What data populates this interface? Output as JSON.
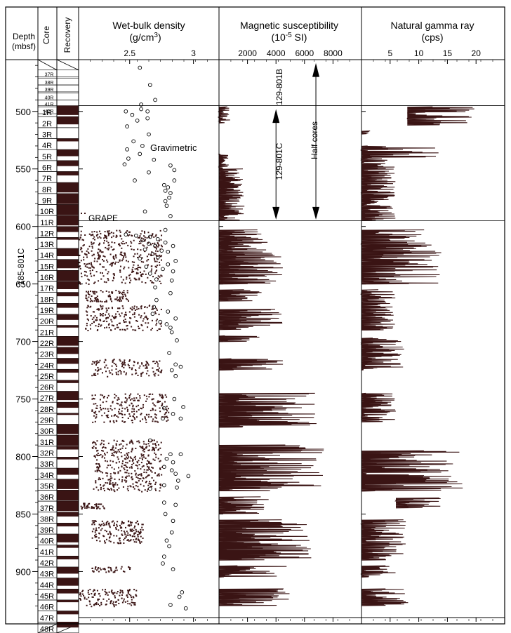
{
  "chart_data": {
    "type": "line",
    "title": "",
    "colors": {
      "data": "#3a1414",
      "frame": "#000000"
    },
    "y_axis": {
      "label_line1": "Depth",
      "label_line2": "(mbsf)",
      "range": [
        455,
        940
      ],
      "ticks": [
        500,
        550,
        600,
        650,
        700,
        750,
        800,
        850,
        900
      ]
    },
    "columns": {
      "core": "Core",
      "recovery": "Recovery",
      "site_label": "185-801C"
    },
    "cores_801B": [
      "37R",
      "38R",
      "39R",
      "40R",
      "41R",
      "42R"
    ],
    "cores_801B_depths": [
      470,
      477,
      483,
      490,
      496,
      502
    ],
    "cores_801C": [
      "1R",
      "2R",
      "3R",
      "4R",
      "5R",
      "6R",
      "7R",
      "8R",
      "9R",
      "10R",
      "11R",
      "12R",
      "13R",
      "14R",
      "15R",
      "16R",
      "17R",
      "18R",
      "19R",
      "20R",
      "21R",
      "22R",
      "23R",
      "24R",
      "25R",
      "26R",
      "27R",
      "28R",
      "29R",
      "30R",
      "31R",
      "32R",
      "33R",
      "34R",
      "35R",
      "36R",
      "37R",
      "38R",
      "39R",
      "40R",
      "41R",
      "42R",
      "43R",
      "44R",
      "45R",
      "46R",
      "47R",
      "48R"
    ],
    "panels": [
      {
        "title_line1": "Wet-bulk density",
        "title_line2": "(g/cm",
        "title_sup": "3",
        "title_end": ")",
        "xlim": [
          2.1,
          3.2
        ],
        "tick_labels": [
          {
            "v": 2.5,
            "label": "2.5"
          },
          {
            "v": 3,
            "label": "3"
          }
        ],
        "annotations": {
          "gravimetric": "Gravimetric",
          "grape": "GRAPE"
        },
        "gravimetric_points": [
          {
            "x": 2.58,
            "y": 462
          },
          {
            "x": 2.66,
            "y": 477
          },
          {
            "x": 2.7,
            "y": 490
          },
          {
            "x": 2.59,
            "y": 494
          },
          {
            "x": 2.59,
            "y": 498
          },
          {
            "x": 2.47,
            "y": 500
          },
          {
            "x": 2.64,
            "y": 500
          },
          {
            "x": 2.52,
            "y": 503
          },
          {
            "x": 2.64,
            "y": 506
          },
          {
            "x": 2.56,
            "y": 508
          },
          {
            "x": 2.48,
            "y": 513
          },
          {
            "x": 2.65,
            "y": 520
          },
          {
            "x": 2.53,
            "y": 526
          },
          {
            "x": 2.6,
            "y": 530
          },
          {
            "x": 2.48,
            "y": 533
          },
          {
            "x": 2.58,
            "y": 537
          },
          {
            "x": 2.49,
            "y": 541
          },
          {
            "x": 2.69,
            "y": 542
          },
          {
            "x": 2.46,
            "y": 546
          },
          {
            "x": 2.82,
            "y": 547
          },
          {
            "x": 2.85,
            "y": 551
          },
          {
            "x": 2.65,
            "y": 553
          },
          {
            "x": 2.54,
            "y": 560
          },
          {
            "x": 2.85,
            "y": 560
          },
          {
            "x": 2.77,
            "y": 564
          },
          {
            "x": 2.8,
            "y": 566
          },
          {
            "x": 2.78,
            "y": 569
          },
          {
            "x": 2.82,
            "y": 571
          },
          {
            "x": 2.81,
            "y": 575
          },
          {
            "x": 2.78,
            "y": 578
          },
          {
            "x": 2.79,
            "y": 582
          },
          {
            "x": 2.62,
            "y": 587
          },
          {
            "x": 2.82,
            "y": 591
          },
          {
            "x": 2.78,
            "y": 603
          },
          {
            "x": 2.47,
            "y": 607
          },
          {
            "x": 2.55,
            "y": 608
          },
          {
            "x": 2.66,
            "y": 609
          },
          {
            "x": 2.72,
            "y": 611
          },
          {
            "x": 2.6,
            "y": 612
          },
          {
            "x": 2.78,
            "y": 614
          },
          {
            "x": 2.65,
            "y": 615
          },
          {
            "x": 2.7,
            "y": 617
          },
          {
            "x": 2.84,
            "y": 617
          },
          {
            "x": 2.62,
            "y": 620
          },
          {
            "x": 2.75,
            "y": 621
          },
          {
            "x": 2.8,
            "y": 622
          },
          {
            "x": 2.68,
            "y": 624
          },
          {
            "x": 2.72,
            "y": 627
          },
          {
            "x": 2.58,
            "y": 628
          },
          {
            "x": 2.86,
            "y": 630
          },
          {
            "x": 2.8,
            "y": 633
          },
          {
            "x": 2.63,
            "y": 635
          },
          {
            "x": 2.76,
            "y": 637
          },
          {
            "x": 2.84,
            "y": 639
          },
          {
            "x": 2.66,
            "y": 641
          },
          {
            "x": 2.71,
            "y": 646
          },
          {
            "x": 2.83,
            "y": 647
          },
          {
            "x": 2.7,
            "y": 653
          },
          {
            "x": 2.82,
            "y": 658
          },
          {
            "x": 2.71,
            "y": 664
          },
          {
            "x": 2.69,
            "y": 670
          },
          {
            "x": 2.8,
            "y": 674
          },
          {
            "x": 2.68,
            "y": 676
          },
          {
            "x": 2.86,
            "y": 680
          },
          {
            "x": 2.74,
            "y": 683
          },
          {
            "x": 2.79,
            "y": 685
          },
          {
            "x": 2.82,
            "y": 688
          },
          {
            "x": 2.83,
            "y": 692
          },
          {
            "x": 2.87,
            "y": 699
          },
          {
            "x": 2.81,
            "y": 710
          },
          {
            "x": 2.86,
            "y": 720
          },
          {
            "x": 2.9,
            "y": 722
          },
          {
            "x": 2.83,
            "y": 725
          },
          {
            "x": 2.86,
            "y": 730
          },
          {
            "x": 2.85,
            "y": 750
          },
          {
            "x": 2.92,
            "y": 757
          },
          {
            "x": 2.77,
            "y": 758
          },
          {
            "x": 2.84,
            "y": 763
          },
          {
            "x": 2.76,
            "y": 767
          },
          {
            "x": 2.9,
            "y": 767
          },
          {
            "x": 2.66,
            "y": 786
          },
          {
            "x": 2.82,
            "y": 798
          },
          {
            "x": 2.9,
            "y": 798
          },
          {
            "x": 2.79,
            "y": 802
          },
          {
            "x": 2.84,
            "y": 805
          },
          {
            "x": 2.77,
            "y": 809
          },
          {
            "x": 2.83,
            "y": 812
          },
          {
            "x": 2.86,
            "y": 815
          },
          {
            "x": 2.96,
            "y": 817
          },
          {
            "x": 2.88,
            "y": 821
          },
          {
            "x": 2.77,
            "y": 825
          },
          {
            "x": 2.87,
            "y": 827
          },
          {
            "x": 2.66,
            "y": 828
          },
          {
            "x": 2.77,
            "y": 840
          },
          {
            "x": 2.86,
            "y": 842
          },
          {
            "x": 2.78,
            "y": 850
          },
          {
            "x": 2.84,
            "y": 856
          },
          {
            "x": 2.83,
            "y": 866
          },
          {
            "x": 2.79,
            "y": 873
          },
          {
            "x": 2.81,
            "y": 878
          },
          {
            "x": 2.77,
            "y": 887
          },
          {
            "x": 2.76,
            "y": 893
          },
          {
            "x": 2.84,
            "y": 898
          },
          {
            "x": 2.91,
            "y": 918
          },
          {
            "x": 2.89,
            "y": 922
          },
          {
            "x": 2.82,
            "y": 929
          },
          {
            "x": 2.94,
            "y": 932
          }
        ]
      },
      {
        "title_line1": "Magnetic susceptibility",
        "title_line2": "(10",
        "title_sup": "-5",
        "title_end": " SI)",
        "xlim": [
          0,
          10000
        ],
        "tick_labels": [
          {
            "v": 2000,
            "label": "2000"
          },
          {
            "v": 4000,
            "label": "4000"
          },
          {
            "v": 6000,
            "label": "6000"
          },
          {
            "v": 8000,
            "label": "8000"
          }
        ],
        "annotations": {
          "hole_b": "129-801B",
          "hole_c": "129-801C",
          "half_cores": "Half cores"
        }
      },
      {
        "title_line1": "Natural gamma ray",
        "title_line2": "(cps)",
        "xlim": [
          0,
          25
        ],
        "tick_labels": [
          {
            "v": 5,
            "label": "5"
          },
          {
            "v": 10,
            "label": "10"
          },
          {
            "v": 15,
            "label": "15"
          },
          {
            "v": 20,
            "label": "20"
          }
        ]
      }
    ]
  }
}
